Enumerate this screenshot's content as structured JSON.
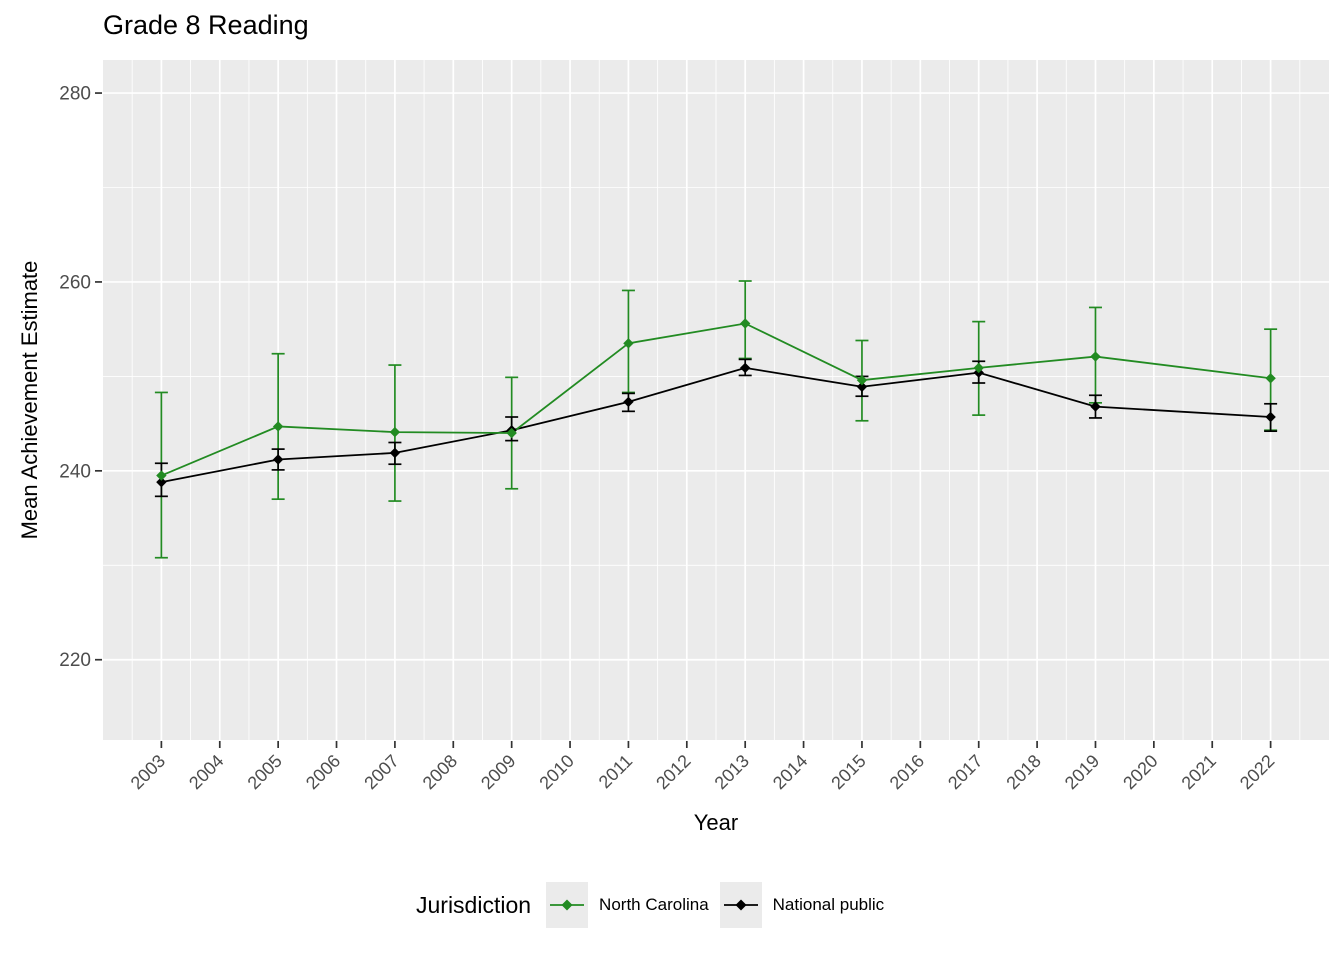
{
  "page": {
    "background": "#ffffff"
  },
  "chart_data": {
    "type": "line",
    "title": "Grade 8 Reading",
    "xlabel": "Year",
    "ylabel": "Mean Achievement Estimate",
    "legend": {
      "title": "Jurisdiction",
      "position": "bottom"
    },
    "grid": "on",
    "panel_background": "#ebebeb",
    "gridline_color": "#ffffff",
    "tick_mark_color": "#333333",
    "tick_label_color": "#4d4d4d",
    "xlim": [
      2002,
      2023
    ],
    "ylim": [
      211.5,
      283.5
    ],
    "x_ticks": [
      2003,
      2004,
      2005,
      2006,
      2007,
      2008,
      2009,
      2010,
      2011,
      2012,
      2013,
      2014,
      2015,
      2016,
      2017,
      2018,
      2019,
      2020,
      2021,
      2022
    ],
    "y_ticks": [
      220,
      240,
      260,
      280
    ],
    "y_minor_ticks": [
      230,
      250,
      270
    ],
    "x_minor_step": 0.5,
    "x": [
      2003,
      2005,
      2007,
      2009,
      2011,
      2013,
      2015,
      2017,
      2019,
      2022
    ],
    "series": [
      {
        "name": "North Carolina",
        "color": "#228B22",
        "values": [
          239.5,
          244.7,
          244.1,
          244.0,
          253.5,
          255.6,
          249.6,
          250.9,
          252.1,
          249.8
        ],
        "error_low": [
          230.8,
          237.0,
          236.8,
          238.1,
          248.3,
          251.9,
          245.3,
          245.9,
          247.2,
          244.3
        ],
        "error_high": [
          248.3,
          252.4,
          251.2,
          249.9,
          259.1,
          260.1,
          253.8,
          255.8,
          257.3,
          255.0
        ]
      },
      {
        "name": "National public",
        "color": "#000000",
        "values": [
          238.8,
          241.2,
          241.9,
          244.3,
          247.3,
          250.9,
          248.9,
          250.4,
          246.8,
          245.7
        ],
        "error_low": [
          237.3,
          240.1,
          240.7,
          243.2,
          246.3,
          250.1,
          247.9,
          249.3,
          245.6,
          244.2
        ],
        "error_high": [
          240.8,
          242.3,
          243.0,
          245.7,
          248.2,
          251.8,
          250.0,
          251.6,
          248.0,
          247.1
        ]
      }
    ]
  }
}
